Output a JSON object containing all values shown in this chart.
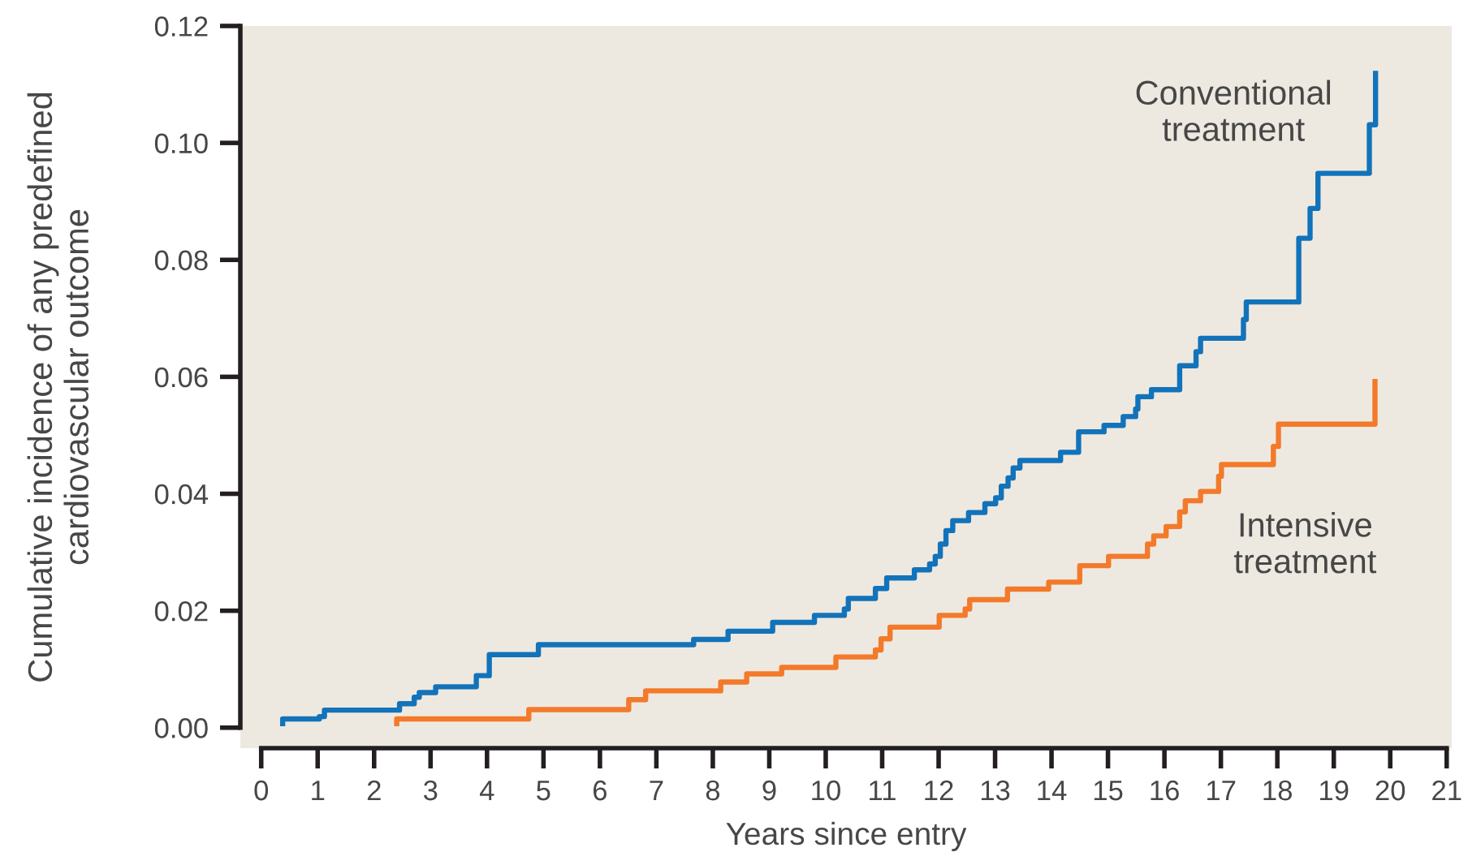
{
  "chart_data": {
    "type": "step",
    "xlabel": "Years since entry",
    "ylabel": "Cumulative incidence of any predefined\ncardiovascular outcome",
    "xlim": [
      -0.37,
      21.09
    ],
    "ylim": [
      -0.0035,
      0.12
    ],
    "xticks": [
      0,
      1,
      2,
      3,
      4,
      5,
      6,
      7,
      8,
      9,
      10,
      11,
      12,
      13,
      14,
      15,
      16,
      17,
      18,
      19,
      20,
      21
    ],
    "yticks": [
      {
        "value": 0,
        "label": "0.00"
      },
      {
        "value": 0.02,
        "label": "0.02"
      },
      {
        "value": 0.04,
        "label": "0.04"
      },
      {
        "value": 0.06,
        "label": "0.06"
      },
      {
        "value": 0.08,
        "label": "0.08"
      },
      {
        "value": 0.1,
        "label": "0.10"
      },
      {
        "value": 0.12,
        "label": "0.12"
      }
    ],
    "grid": false,
    "legend": false,
    "line_style": "solid",
    "marker": "none",
    "series": [
      {
        "name": "Conventional\ntreatment",
        "color": "#1273ba",
        "x": [
          0.38,
          0.38,
          1.03,
          1.12,
          2.45,
          2.71,
          2.8,
          3.09,
          3.81,
          4.04,
          4.91,
          7.66,
          8.27,
          9.06,
          9.8,
          10.33,
          10.4,
          10.88,
          11.08,
          11.57,
          11.84,
          11.94,
          12.03,
          12.13,
          12.25,
          12.53,
          12.82,
          13.01,
          13.11,
          13.23,
          13.32,
          13.44,
          14.16,
          14.48,
          14.93,
          15.27,
          15.49,
          15.53,
          15.77,
          16.27,
          16.56,
          16.64,
          17.4,
          17.45,
          18.38,
          18.58,
          18.72,
          19.63,
          19.74
        ],
        "values": [
          0.0007,
          0.0015,
          0.0019,
          0.003,
          0.0041,
          0.0052,
          0.006,
          0.007,
          0.0089,
          0.0125,
          0.0142,
          0.0151,
          0.0165,
          0.018,
          0.0192,
          0.0203,
          0.0221,
          0.0238,
          0.0256,
          0.027,
          0.028,
          0.0293,
          0.0314,
          0.0337,
          0.0354,
          0.0368,
          0.0383,
          0.0393,
          0.0413,
          0.0427,
          0.0444,
          0.0457,
          0.0471,
          0.0506,
          0.0517,
          0.0532,
          0.0545,
          0.0566,
          0.0578,
          0.0619,
          0.0643,
          0.0666,
          0.0698,
          0.0728,
          0.0837,
          0.0888,
          0.0948,
          0.1031,
          0.1119
        ]
      },
      {
        "name": "Intensive\ntreatment",
        "color": "#f37a2b",
        "x": [
          2.4,
          2.4,
          4.74,
          6.51,
          6.81,
          8.14,
          8.6,
          9.22,
          10.18,
          10.88,
          10.98,
          11.14,
          12.01,
          12.47,
          12.55,
          13.22,
          13.95,
          14.5,
          15.01,
          15.7,
          15.81,
          16.03,
          16.27,
          16.37,
          16.64,
          16.96,
          17.01,
          17.93,
          18.02,
          19.73
        ],
        "values": [
          0.0007,
          0.0015,
          0.0031,
          0.0048,
          0.0063,
          0.0078,
          0.0092,
          0.0103,
          0.0121,
          0.0133,
          0.0152,
          0.0172,
          0.0192,
          0.0203,
          0.0219,
          0.0237,
          0.0249,
          0.0277,
          0.0293,
          0.0314,
          0.0328,
          0.0344,
          0.0369,
          0.0388,
          0.0404,
          0.043,
          0.045,
          0.0481,
          0.0519,
          0.0592
        ]
      }
    ]
  }
}
